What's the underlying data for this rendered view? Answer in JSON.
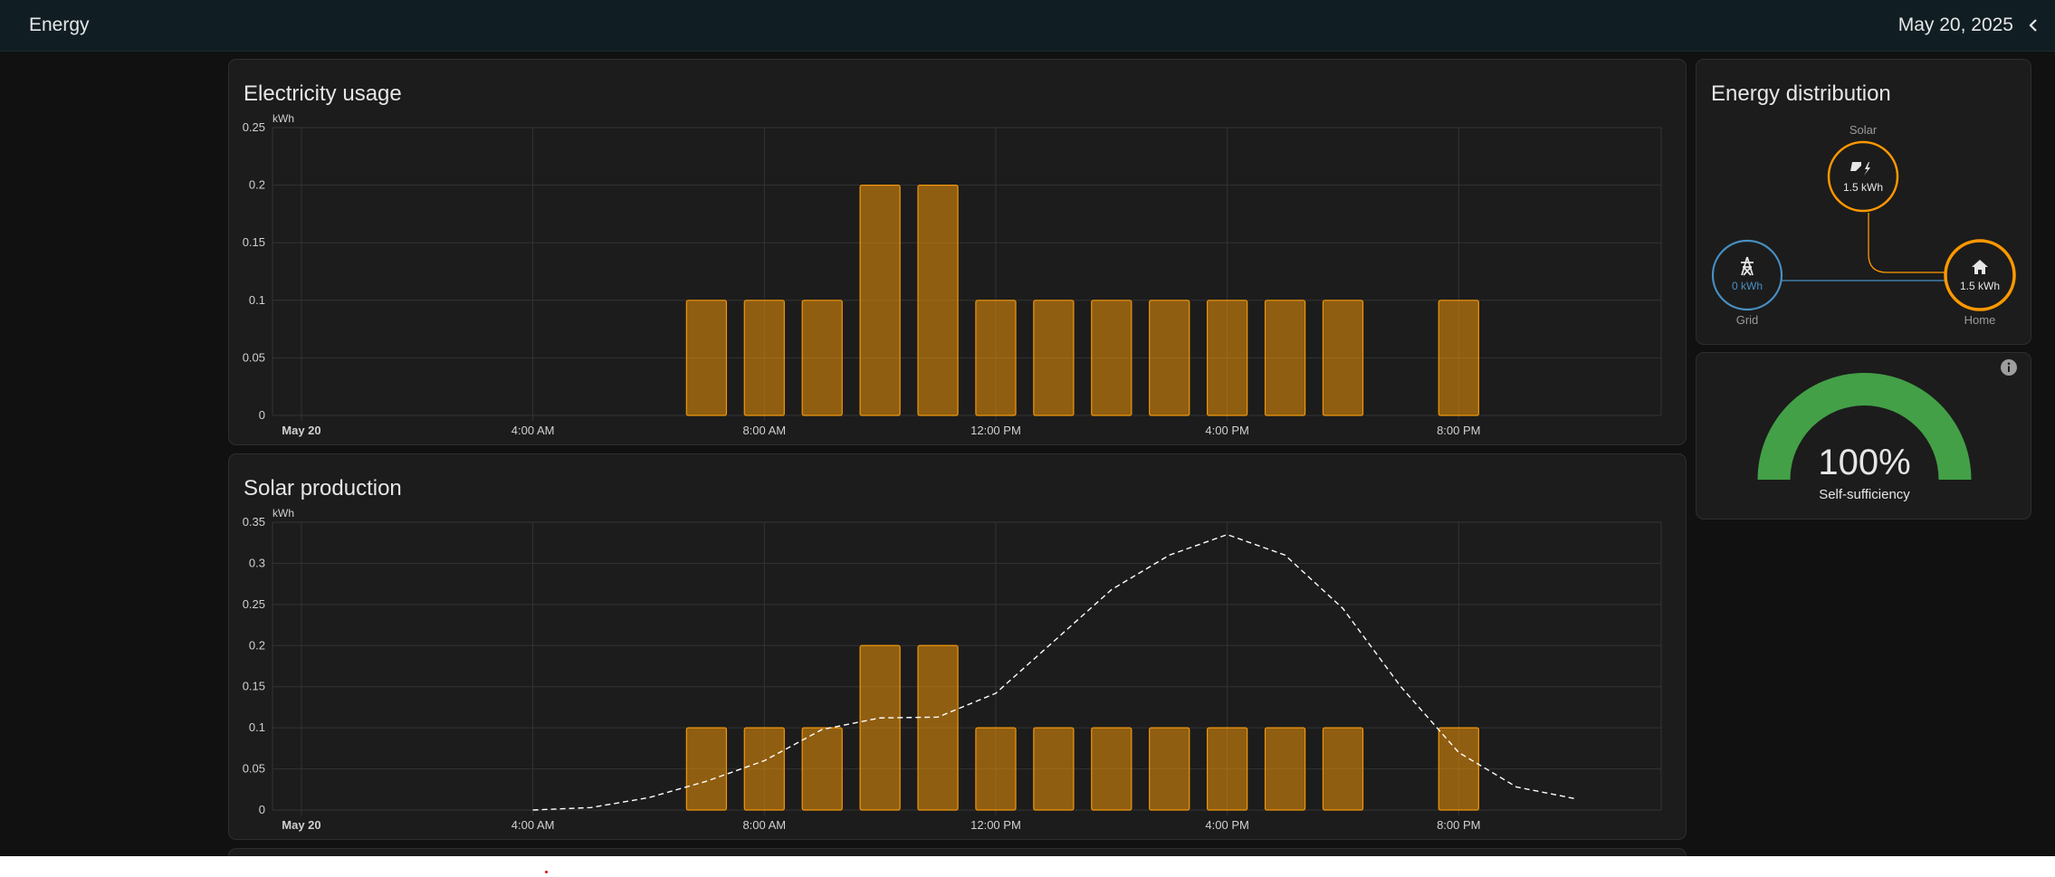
{
  "header": {
    "title": "Energy",
    "date": "May 20, 2025"
  },
  "usage_card": {
    "title": "Electricity usage",
    "chart_data": {
      "type": "bar",
      "unit": "kWh",
      "ylim": [
        0,
        0.25
      ],
      "yticks": [
        "0",
        "0.05",
        "0.1",
        "0.15",
        "0.2",
        "0.25"
      ],
      "xticks": [
        "May 20",
        "4:00 AM",
        "8:00 AM",
        "12:00 PM",
        "4:00 PM",
        "8:00 PM"
      ],
      "hours": [
        7,
        8,
        9,
        10,
        11,
        12,
        13,
        14,
        15,
        16,
        17,
        18,
        20
      ],
      "values": [
        0.1,
        0.1,
        0.1,
        0.2,
        0.2,
        0.1,
        0.1,
        0.1,
        0.1,
        0.1,
        0.1,
        0.1,
        0.1
      ],
      "bar_color": "#f0960a"
    }
  },
  "solar_card": {
    "title": "Solar production",
    "chart_data": {
      "type": "bar",
      "unit": "kWh",
      "ylim": [
        0,
        0.35
      ],
      "yticks": [
        "0",
        "0.05",
        "0.1",
        "0.15",
        "0.2",
        "0.25",
        "0.3",
        "0.35"
      ],
      "xticks": [
        "May 20",
        "4:00 AM",
        "8:00 AM",
        "12:00 PM",
        "4:00 PM",
        "8:00 PM"
      ],
      "hours": [
        7,
        8,
        9,
        10,
        11,
        12,
        13,
        14,
        15,
        16,
        17,
        18,
        20
      ],
      "values": [
        0.1,
        0.1,
        0.1,
        0.2,
        0.2,
        0.1,
        0.1,
        0.1,
        0.1,
        0.1,
        0.1,
        0.1,
        0.1
      ],
      "bar_color": "#f0960a",
      "forecast": {
        "style": "dashed",
        "color": "#ffffff",
        "x": [
          4,
          5,
          6,
          7,
          8,
          9,
          10,
          11,
          12,
          13,
          14,
          15,
          16,
          17,
          18,
          19,
          20,
          21,
          22
        ],
        "y": [
          0.0,
          0.003,
          0.015,
          0.035,
          0.06,
          0.098,
          0.112,
          0.113,
          0.142,
          0.205,
          0.268,
          0.31,
          0.335,
          0.31,
          0.245,
          0.15,
          0.07,
          0.028,
          0.014
        ]
      }
    }
  },
  "distribution": {
    "title": "Energy distribution",
    "solar": {
      "label": "Solar",
      "value": "1.5 kWh",
      "color": "#ff9800"
    },
    "grid": {
      "label": "Grid",
      "value": "0 kWh",
      "color": "#488fc2"
    },
    "home": {
      "label": "Home",
      "value": "1.5 kWh",
      "color": "#ff9800"
    }
  },
  "self_sufficiency": {
    "value_text": "100%",
    "value": 100,
    "label": "Self-sufficiency",
    "color": "#43a047"
  }
}
